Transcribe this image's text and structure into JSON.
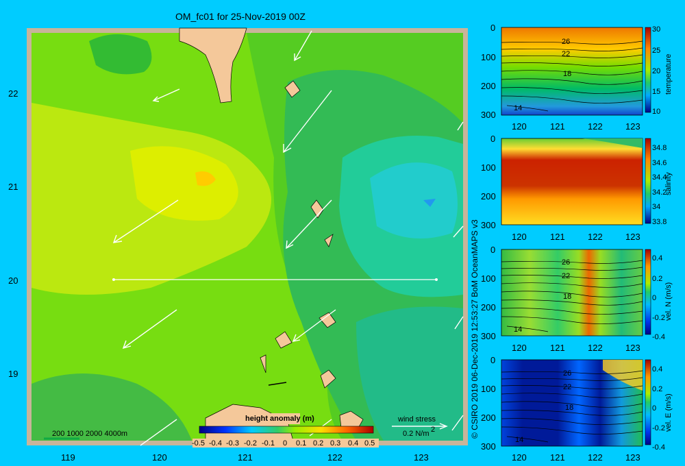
{
  "title": "OM_fc01 for 25-Nov-2019 00Z",
  "map": {
    "lon_ticks": [
      "119",
      "120",
      "121",
      "122",
      "123"
    ],
    "lat_ticks": [
      "22",
      "21",
      "20",
      "19"
    ],
    "scale_bar_label": "200  1000  2000  4000m",
    "colorbar_title": "height anomaly (m)",
    "colorbar_ticks": [
      "-0.5",
      "-0.4",
      "-0.3",
      "-0.2",
      "-0.1",
      "0",
      "0.1",
      "0.2",
      "0.3",
      "0.4",
      "0.5"
    ],
    "wind_legend_title": "wind stress",
    "wind_legend_value": "0.2 N/m",
    "wind_legend_exp": "2",
    "colors": {
      "land": "#f4c89a",
      "frame": "#c8b49a",
      "background": "#00ccff"
    }
  },
  "panels": [
    {
      "name": "temperature",
      "label": "temperature",
      "depth_ticks": [
        "0",
        "100",
        "200",
        "300"
      ],
      "x_ticks": [
        "120",
        "121",
        "122",
        "123"
      ],
      "cb_ticks": [
        "30",
        "25",
        "20",
        "15",
        "10"
      ],
      "contours": [
        "26",
        "22",
        "18",
        "14"
      ]
    },
    {
      "name": "salinity",
      "label": "salinity",
      "depth_ticks": [
        "0",
        "100",
        "200",
        "300"
      ],
      "x_ticks": [
        "120",
        "121",
        "122",
        "123"
      ],
      "cb_ticks": [
        "34.8",
        "34.6",
        "34.4",
        "34.2",
        "34",
        "33.8"
      ],
      "contours": []
    },
    {
      "name": "vel-n",
      "label": "vel. N  (m/s)",
      "depth_ticks": [
        "0",
        "100",
        "200",
        "300"
      ],
      "x_ticks": [
        "120",
        "121",
        "122",
        "123"
      ],
      "cb_ticks": [
        "0.4",
        "0.2",
        "0",
        "-0.2",
        "-0.4"
      ],
      "contours": [
        "26",
        "22",
        "18",
        "14"
      ]
    },
    {
      "name": "vel-e",
      "label": "vel. E  (m/s)",
      "depth_ticks": [
        "0",
        "100",
        "200",
        "300"
      ],
      "x_ticks": [
        "120",
        "121",
        "122",
        "123"
      ],
      "cb_ticks": [
        "0.4",
        "0.2",
        "0",
        "-0.2",
        "-0.4"
      ],
      "contours": [
        "26",
        "22",
        "18",
        "14"
      ]
    }
  ],
  "credit": "© CSIRO 2019   06-Dec-2019 12:53:27 BoM OceanMAPS v3"
}
